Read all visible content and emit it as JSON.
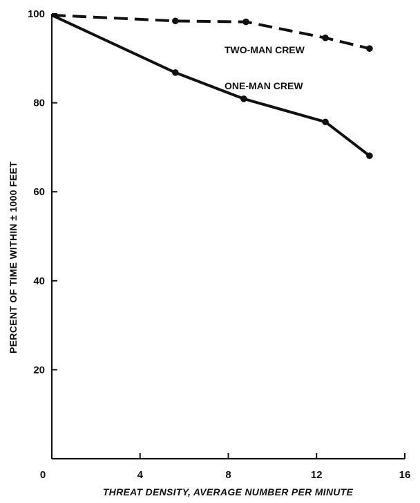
{
  "chart_data": {
    "type": "line",
    "title": "",
    "xlabel": "THREAT DENSITY, AVERAGE NUMBER PER MINUTE",
    "ylabel": "PERCENT OF TIME WITHIN ± 1000 FEET",
    "xlim": [
      0,
      16
    ],
    "ylim": [
      0,
      100
    ],
    "x_ticks": [
      0,
      4,
      8,
      12,
      16
    ],
    "y_ticks": [
      20,
      40,
      60,
      80,
      100
    ],
    "x_tick_labels": [
      "0",
      "4",
      "8",
      "12",
      "16"
    ],
    "y_tick_labels": [
      "20",
      "40",
      "60",
      "80",
      "100"
    ],
    "grid": false,
    "legend": "none",
    "series": [
      {
        "name": "TWO-MAN CREW",
        "style": "dashed",
        "color": "#111111",
        "x": [
          0,
          5.6,
          8.8,
          12.4,
          14.4
        ],
        "y": [
          99.7,
          98.4,
          98.2,
          94.6,
          92.2
        ]
      },
      {
        "name": "ONE-MAN CREW",
        "style": "solid",
        "color": "#111111",
        "x": [
          0,
          5.6,
          8.7,
          12.4,
          14.4
        ],
        "y": [
          99.7,
          86.8,
          80.9,
          75.7,
          68.1
        ]
      }
    ]
  }
}
